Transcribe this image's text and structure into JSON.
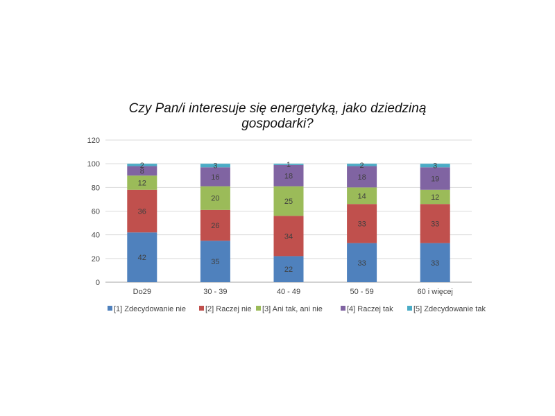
{
  "chart_data": {
    "type": "bar",
    "stacked": true,
    "title": "Czy Pan/i interesuje się energetyką, jako dziedziną gospodarki?",
    "categories": [
      "Do29",
      "30 - 39",
      "40 - 49",
      "50 - 59",
      "60 i więcej"
    ],
    "series": [
      {
        "name": "[1] Zdecydowanie nie",
        "color": "#4f81bd",
        "values": [
          42,
          35,
          22,
          33,
          33
        ]
      },
      {
        "name": "[2] Raczej nie",
        "color": "#c0504d",
        "values": [
          36,
          26,
          34,
          33,
          33
        ]
      },
      {
        "name": "[3] Ani tak, ani nie",
        "color": "#9bbb59",
        "values": [
          12,
          20,
          25,
          14,
          12
        ]
      },
      {
        "name": "[4] Raczej tak",
        "color": "#8064a2",
        "values": [
          8,
          16,
          18,
          18,
          19
        ]
      },
      {
        "name": "[5] Zdecydowanie tak",
        "color": "#4bacc6",
        "values": [
          2,
          3,
          1,
          2,
          3
        ]
      }
    ],
    "ylim": [
      0,
      120
    ],
    "yticks": [
      0,
      20,
      40,
      60,
      80,
      100,
      120
    ],
    "grid": true,
    "legend_position": "bottom"
  }
}
